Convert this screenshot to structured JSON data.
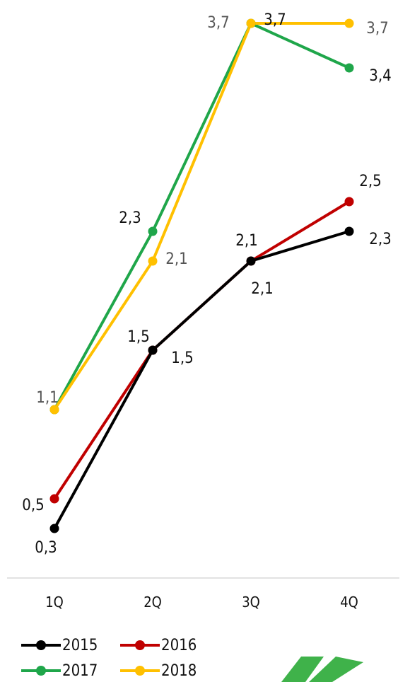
{
  "chart_data": {
    "type": "line",
    "categories": [
      "1Q",
      "2Q",
      "3Q",
      "4Q"
    ],
    "ylim": [
      0.1,
      3.8
    ],
    "grid": false,
    "legend": "bottom-left",
    "series": [
      {
        "name": "2015",
        "color": "#000000",
        "label_color": "#111111",
        "values": [
          0.3,
          1.5,
          2.1,
          2.3
        ],
        "labels": [
          "0,3",
          "1,5",
          "2,1",
          "2,3"
        ]
      },
      {
        "name": "2016",
        "color": "#c00000",
        "label_color": "#111111",
        "values": [
          0.5,
          1.5,
          2.1,
          2.5
        ],
        "labels": [
          "0,5",
          "1,5",
          "2,1",
          "2,5"
        ]
      },
      {
        "name": "2017",
        "color": "#1fa64a",
        "label_color": "#111111",
        "values": [
          1.1,
          2.3,
          3.7,
          3.4
        ],
        "labels": [
          "",
          "2,3",
          "3,7",
          "3,4"
        ]
      },
      {
        "name": "2018",
        "color": "#ffc000",
        "label_color": "#555555",
        "values": [
          1.1,
          2.1,
          3.7,
          3.7
        ],
        "labels": [
          "1,1",
          "2,1",
          "3,7",
          "3,7"
        ]
      }
    ]
  },
  "logo": {
    "name": "company-logo",
    "color": "#3fb24a"
  }
}
